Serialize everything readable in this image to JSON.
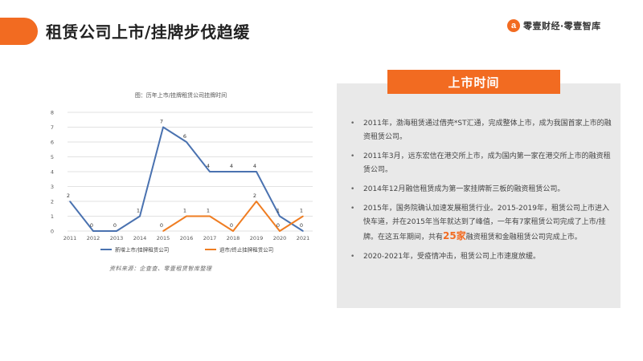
{
  "page": {
    "title": "租赁公司上市/挂牌步伐趋缓",
    "logo_mark": "a",
    "logo_text": "零壹财经·零壹智库",
    "source": "资料来源：企查查、零壹租赁智库整理"
  },
  "panel": {
    "heading": "上市时间",
    "items": [
      {
        "text": "2011年，渤海租赁通过借壳*ST汇通，完成整体上市，成为我国首家上市的融资租赁公司。"
      },
      {
        "text": "2011年3月，远东宏信在港交所上市，成为国内第一家在港交所上市的融资租赁公司。"
      },
      {
        "text": "2014年12月融信租赁成为第一家挂牌新三板的融资租赁公司。"
      },
      {
        "pre": "2015年，国务院确认加速发展租赁行业。2015-2019年，租赁公司上市进入快车道，并在2015年当年就达到了峰值，一年有7家租赁公司完成了上市/挂牌。在这五年期间，共有",
        "highlight": "25家",
        "post": "融资租赁和金融租赁公司完成上市。"
      },
      {
        "text": "2020-2021年，受疫情冲击，租赁公司上市速度放缓。"
      }
    ]
  },
  "chart_data": {
    "type": "line",
    "title": "图：历年上市/挂牌租赁公司挂牌时间",
    "categories": [
      "2011",
      "2012",
      "2013",
      "2014",
      "2015",
      "2016",
      "2017",
      "2018",
      "2019",
      "2020",
      "2021"
    ],
    "ylim": [
      0,
      8
    ],
    "yticks": [
      "0",
      "1",
      "2",
      "3",
      "4",
      "5",
      "6",
      "7",
      "8"
    ],
    "grid": true,
    "legend_position": "bottom",
    "series": [
      {
        "name": "新增上市/挂牌租赁公司",
        "values": [
          2,
          0,
          0,
          1,
          7,
          6,
          4,
          4,
          4,
          1,
          0
        ],
        "color": "#4a72b0"
      },
      {
        "name": "退市/终止挂牌租赁公司",
        "values": [
          null,
          null,
          null,
          null,
          0,
          1,
          1,
          0,
          2,
          0,
          1
        ],
        "color": "#ef7d22"
      }
    ]
  },
  "colors": {
    "accent": "#f26b21",
    "panel_bg": "#e9e9e9"
  }
}
